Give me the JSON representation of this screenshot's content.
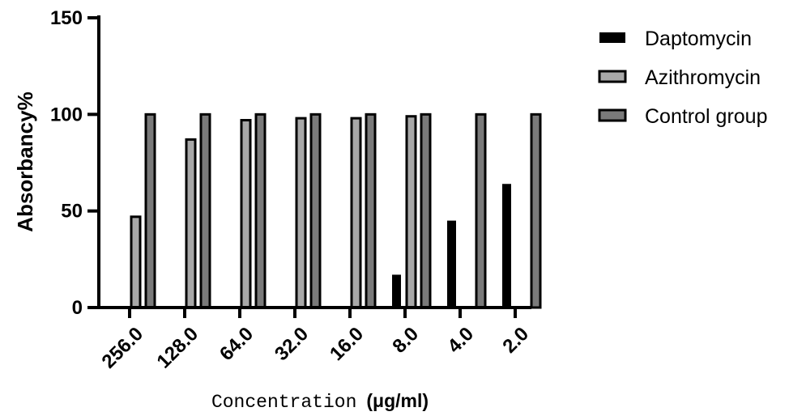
{
  "chart_data": {
    "type": "bar",
    "categories": [
      "256.0",
      "128.0",
      "64.0",
      "32.0",
      "16.0",
      "8.0",
      "4.0",
      "2.0"
    ],
    "series": [
      {
        "name": "Daptomycin",
        "color": "#000000",
        "values": [
          0,
          0,
          0.3,
          0.4,
          0.4,
          17,
          45,
          64
        ]
      },
      {
        "name": "Azithromycin",
        "color": "#a8a8a8",
        "values": [
          47,
          87,
          97,
          98,
          98,
          99,
          0,
          0
        ]
      },
      {
        "name": "Control group",
        "color": "#7a7a7a",
        "values": [
          100,
          100,
          100,
          100,
          100,
          100,
          100,
          100
        ]
      }
    ],
    "yticks": [
      "0",
      "50",
      "100",
      "150"
    ],
    "ylim": [
      0,
      150
    ],
    "ylabel": "Absorbancy%",
    "xlabel_main": "Concentration",
    "xlabel_unit": "(μg/ml)",
    "legend_position": "top-right",
    "grid": false
  }
}
